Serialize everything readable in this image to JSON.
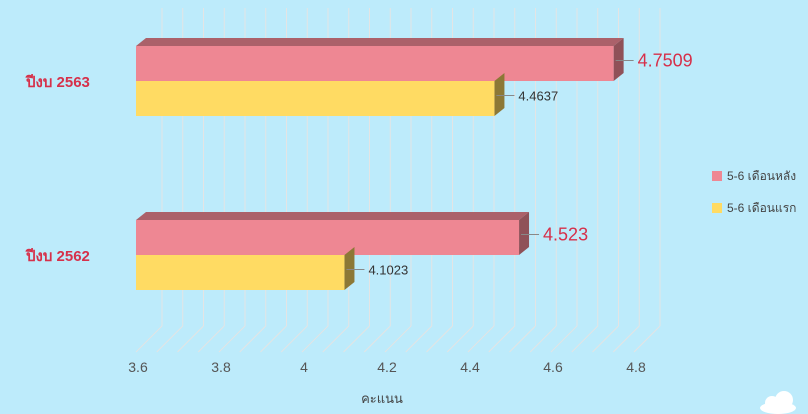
{
  "chart_data": {
    "type": "bar",
    "orientation": "horizontal",
    "three_d": true,
    "categories": [
      "ปีงบ 2563",
      "ปีงบ 2562"
    ],
    "series": [
      {
        "name": "5-6 เดือนหลัง",
        "values": [
          4.7509,
          4.523
        ],
        "value_labels": [
          "4.7509",
          "4.523"
        ],
        "color": "#ee8793"
      },
      {
        "name": "5-6 เดือนแรก",
        "values": [
          4.4637,
          4.1023
        ],
        "value_labels": [
          "4.4637",
          "4.1023"
        ],
        "color": "#ffdb63"
      }
    ],
    "xlim": [
      3.6,
      4.8
    ],
    "xticks": [
      3.6,
      3.8,
      4,
      4.2,
      4.4,
      4.6,
      4.8
    ],
    "xtick_labels": [
      "3.6",
      "3.8",
      "4",
      "4.2",
      "4.4",
      "4.6",
      "4.8"
    ],
    "xlabel": "คะแนน",
    "grid": true,
    "legend_position": "right",
    "colors": {
      "background": "#bdebfb",
      "category_label": "#d6304a"
    }
  },
  "icons": {
    "corner": "cloud-icon"
  }
}
